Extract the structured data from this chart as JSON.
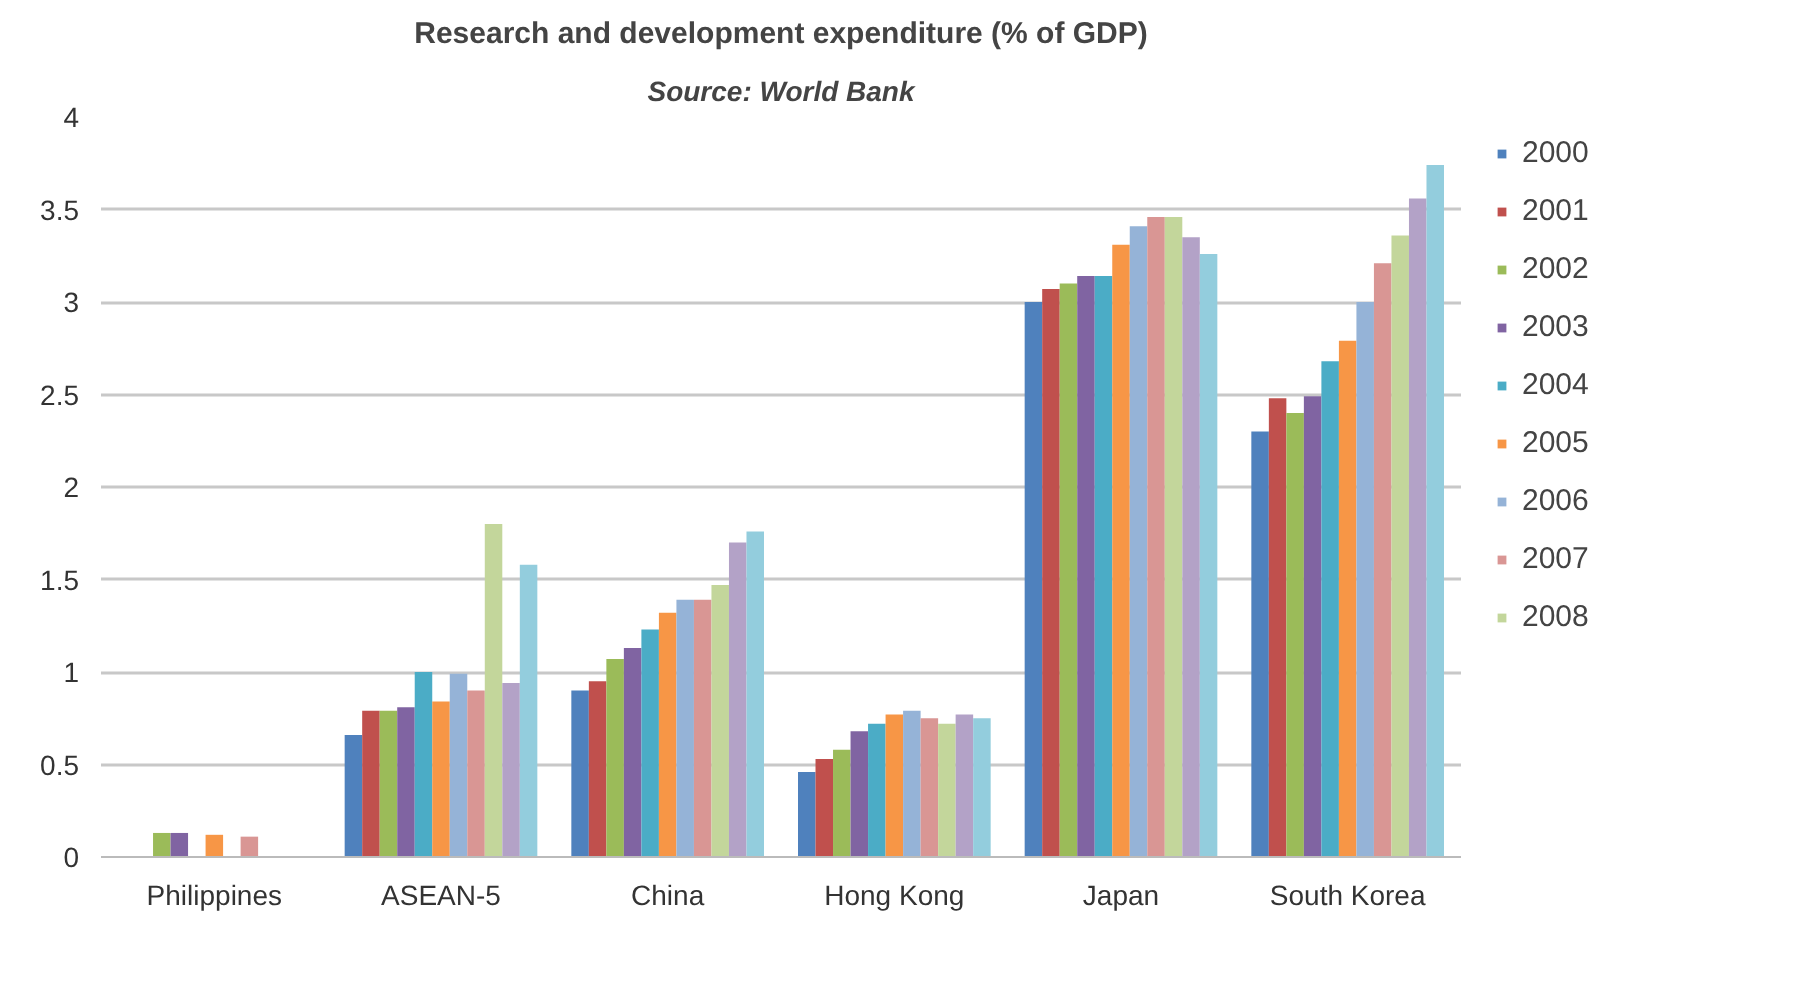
{
  "chart_data": {
    "type": "bar",
    "title": "Research and development expenditure (% of GDP)",
    "subtitle": "Source: World Bank",
    "categories": [
      "Philippines",
      "ASEAN-5",
      "China",
      "Hong Kong",
      "Japan",
      "South Korea"
    ],
    "ylim": [
      0,
      4
    ],
    "yticks": [
      0,
      0.5,
      1,
      1.5,
      2,
      2.5,
      3,
      3.5,
      4
    ],
    "grid": "y",
    "legend": "right",
    "series": [
      {
        "name": "2000",
        "color": "#4f81bd",
        "values": [
          null,
          0.66,
          0.9,
          0.46,
          3.0,
          2.3
        ]
      },
      {
        "name": "2001",
        "color": "#c0504d",
        "values": [
          null,
          0.79,
          0.95,
          0.53,
          3.07,
          2.48
        ]
      },
      {
        "name": "2002",
        "color": "#9bbb59",
        "values": [
          0.13,
          0.79,
          1.07,
          0.58,
          3.1,
          2.4
        ]
      },
      {
        "name": "2003",
        "color": "#8064a2",
        "values": [
          0.13,
          0.81,
          1.13,
          0.68,
          3.14,
          2.49
        ]
      },
      {
        "name": "2004",
        "color": "#4bacc6",
        "values": [
          null,
          1.0,
          1.23,
          0.72,
          3.14,
          2.68
        ]
      },
      {
        "name": "2005",
        "color": "#f79646",
        "values": [
          0.12,
          0.84,
          1.32,
          0.77,
          3.31,
          2.79
        ]
      },
      {
        "name": "2006",
        "color": "#95b3d7",
        "values": [
          null,
          0.99,
          1.39,
          0.79,
          3.41,
          3.0
        ]
      },
      {
        "name": "2007",
        "color": "#d99694",
        "values": [
          0.11,
          0.9,
          1.39,
          0.75,
          3.46,
          3.21
        ]
      },
      {
        "name": "2008",
        "color": "#c3d69b",
        "values": [
          null,
          1.8,
          1.47,
          0.72,
          3.46,
          3.36
        ]
      },
      {
        "color": "#b3a2c7",
        "values": [
          null,
          0.94,
          1.7,
          0.77,
          3.35,
          3.56
        ]
      },
      {
        "color": "#93cddd",
        "values": [
          null,
          1.58,
          1.76,
          0.75,
          3.26,
          3.74
        ]
      }
    ]
  }
}
